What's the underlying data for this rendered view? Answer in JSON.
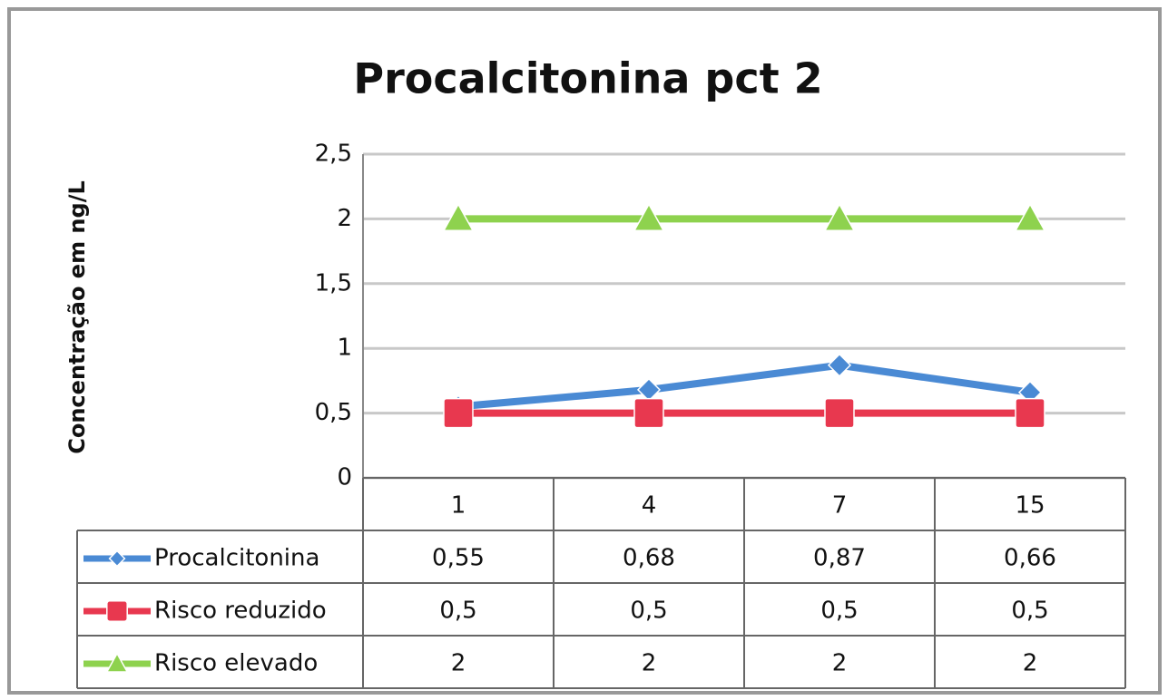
{
  "chart_data": {
    "type": "line",
    "title": "Procalcitonina pct 2",
    "y_label": "Concentração em ng/L",
    "categories": [
      "1",
      "4",
      "7",
      "15"
    ],
    "series": [
      {
        "name": "Procalcitonina",
        "color": "#4a8ad4",
        "marker": "diamond",
        "values": [
          0.55,
          0.68,
          0.87,
          0.66
        ],
        "value_labels": [
          "0,55",
          "0,68",
          "0,87",
          "0,66"
        ]
      },
      {
        "name": "Risco reduzido",
        "color": "#e8384f",
        "marker": "square",
        "values": [
          0.5,
          0.5,
          0.5,
          0.5
        ],
        "value_labels": [
          "0,5",
          "0,5",
          "0,5",
          "0,5"
        ]
      },
      {
        "name": "Risco elevado",
        "color": "#8ed24e",
        "marker": "triangle",
        "values": [
          2,
          2,
          2,
          2
        ]
      }
    ],
    "ylim": [
      0,
      2.5
    ],
    "yticks": [
      0,
      {
        "value": 0.5,
        "label": "0,5"
      },
      1,
      {
        "value": 1.5,
        "label": "1,5"
      },
      2,
      {
        "value": 2.5,
        "label": "2,5"
      }
    ],
    "grid": true
  }
}
